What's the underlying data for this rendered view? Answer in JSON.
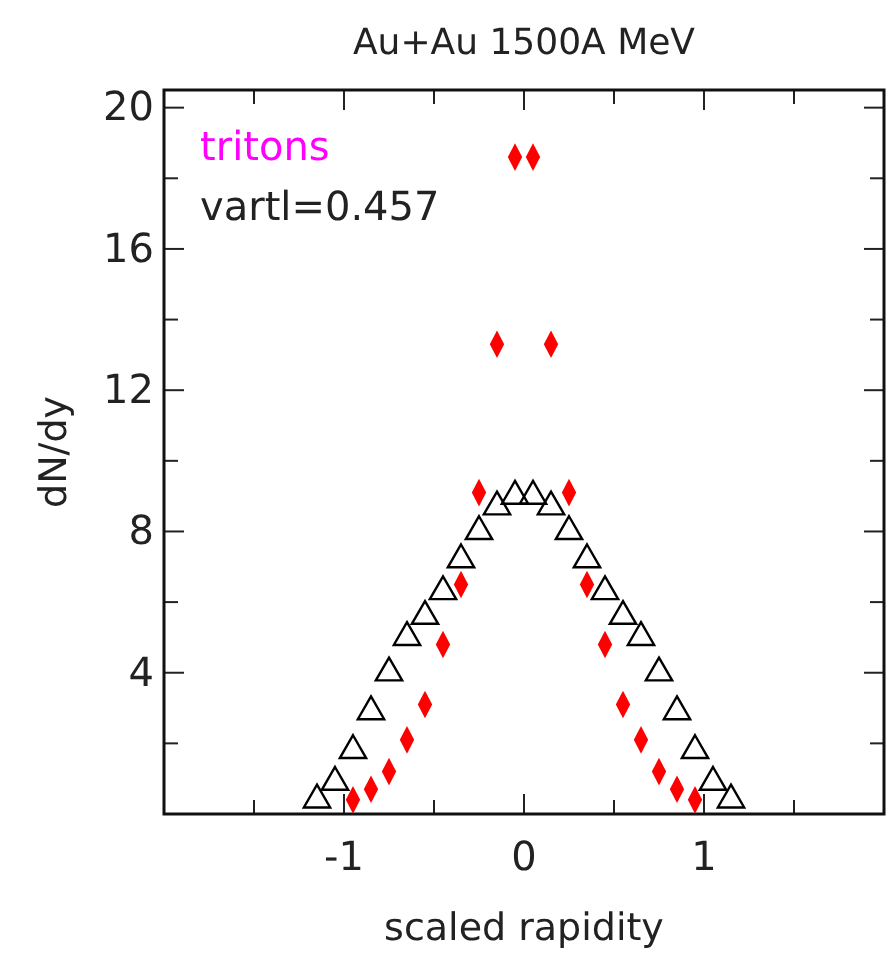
{
  "chart_data": {
    "type": "scatter",
    "title": "Au+Au 1500A MeV",
    "xlabel": "scaled rapidity",
    "ylabel": "dN/dy",
    "annotations": [
      "tritons",
      "vartl=0.457"
    ],
    "xlim": [
      -2,
      2
    ],
    "ylim": [
      0,
      20.5
    ],
    "xticks": [
      {
        "value": -1.5,
        "label": null
      },
      -1,
      {
        "value": -0.5,
        "label": null
      },
      0,
      {
        "value": 0.5,
        "label": null
      },
      1,
      {
        "value": 1.5,
        "label": null
      }
    ],
    "yticks": [
      {
        "value": 2,
        "label": null
      },
      4,
      {
        "value": 6,
        "label": null
      },
      8,
      {
        "value": 10,
        "label": null
      },
      12,
      {
        "value": 14,
        "label": null
      },
      16,
      {
        "value": 18,
        "label": null
      },
      20
    ],
    "series": [
      {
        "color": "#000000",
        "marker": "triangle",
        "x": [
          -1.15,
          -1.05,
          -0.95,
          -0.85,
          -0.75,
          -0.65,
          -0.55,
          -0.45,
          -0.35,
          -0.25,
          -0.15,
          -0.05,
          0.05,
          0.15,
          0.25,
          0.35,
          0.45,
          0.55,
          0.65,
          0.75,
          0.85,
          0.95,
          1.05,
          1.15
        ],
        "values": [
          0.4,
          0.9,
          1.8,
          2.9,
          4.0,
          5.0,
          5.6,
          6.3,
          7.2,
          8.0,
          8.7,
          9.0,
          9.0,
          8.7,
          8.0,
          7.2,
          6.3,
          5.6,
          5.0,
          4.0,
          2.9,
          1.8,
          0.9,
          0.4
        ]
      },
      {
        "color": "#ff0000",
        "marker": "diamond",
        "x": [
          -0.95,
          -0.85,
          -0.75,
          -0.65,
          -0.55,
          -0.45,
          -0.35,
          -0.25,
          -0.15,
          -0.05,
          0.05,
          0.15,
          0.25,
          0.35,
          0.45,
          0.55,
          0.65,
          0.75,
          0.85,
          0.95
        ],
        "values": [
          0.4,
          0.7,
          1.2,
          2.1,
          3.1,
          4.8,
          6.5,
          9.1,
          13.3,
          18.6,
          18.6,
          13.3,
          9.1,
          6.5,
          4.8,
          3.1,
          2.1,
          1.2,
          0.7,
          0.4
        ]
      }
    ]
  }
}
